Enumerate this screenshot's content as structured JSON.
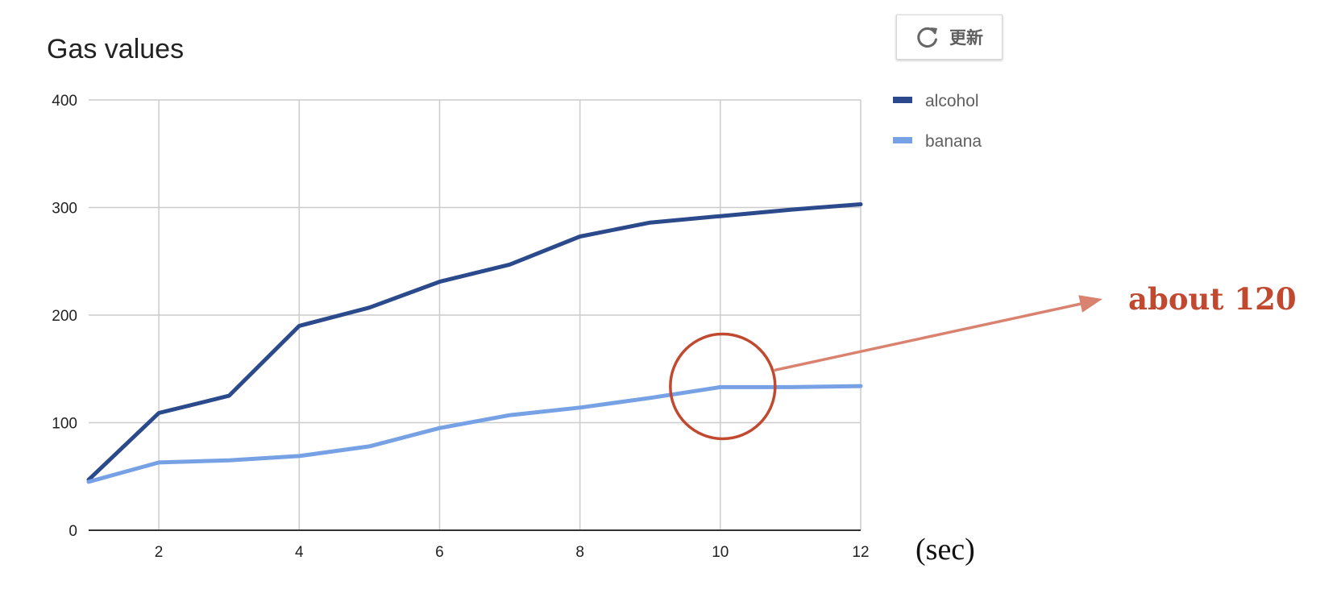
{
  "toolbar": {
    "refresh_label": "更新",
    "refresh_icon": "refresh-icon"
  },
  "colors": {
    "alcohol": "#2b4a8b",
    "banana": "#77a1e5",
    "annotation": "#c0492f",
    "arrow": "#d9826f",
    "grid": "#cccccc",
    "axis": "#333333"
  },
  "chart_data": {
    "type": "line",
    "title": "Gas values",
    "xlabel": "",
    "ylabel": "",
    "x_unit_note": "(sec)",
    "x": [
      1,
      2,
      3,
      4,
      5,
      6,
      7,
      8,
      9,
      10,
      11,
      12
    ],
    "x_ticks": [
      2,
      4,
      6,
      8,
      10,
      12
    ],
    "xlim": [
      1,
      12
    ],
    "y_ticks": [
      0,
      100,
      200,
      300,
      400
    ],
    "ylim": [
      0,
      400
    ],
    "grid": true,
    "legend_position": "right",
    "series": [
      {
        "name": "alcohol",
        "values": [
          47,
          109,
          125,
          190,
          207,
          231,
          247,
          273,
          286,
          292,
          298,
          303
        ]
      },
      {
        "name": "banana",
        "values": [
          45,
          63,
          65,
          69,
          78,
          95,
          107,
          114,
          123,
          133,
          133,
          134
        ]
      }
    ],
    "annotation": {
      "text": "about 120",
      "target_x": 10,
      "target_y": 133
    }
  }
}
